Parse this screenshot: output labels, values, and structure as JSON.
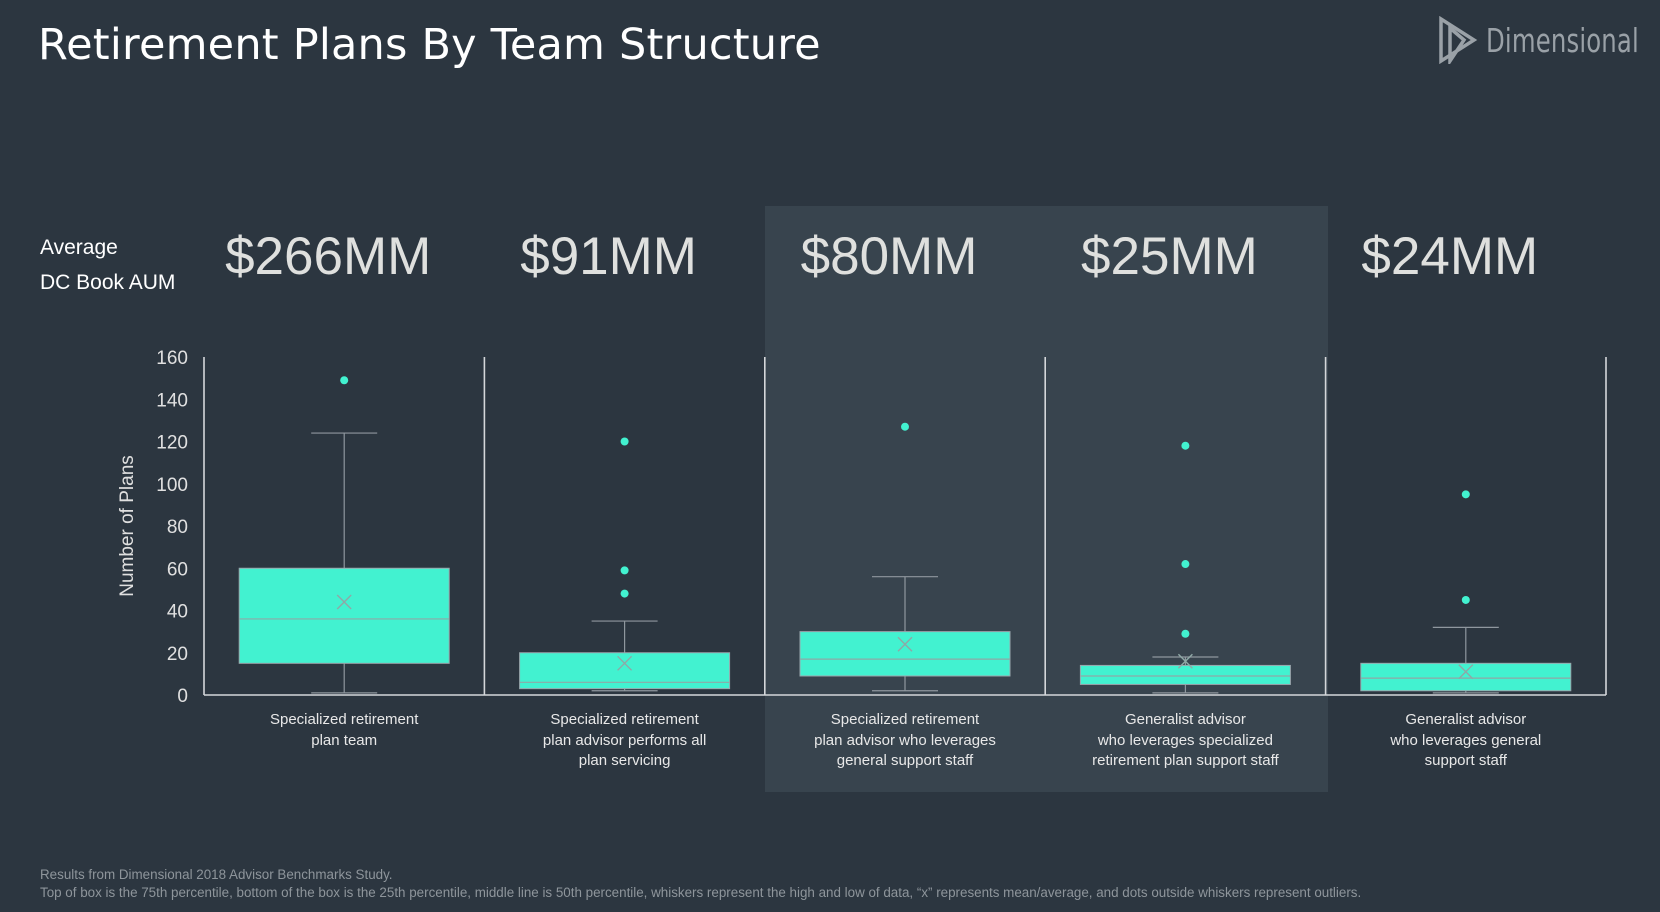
{
  "title": "Retirement Plans By Team Structure",
  "logo": {
    "text": "Dimensional",
    "icon": "dimensional-d-logo-icon"
  },
  "aum_label": {
    "line1": "Average",
    "line2": "DC Book AUM"
  },
  "colors": {
    "background": "#2c3640",
    "highlight_panel": "#38444e",
    "box_fill": "#42f2d0",
    "text": "#ffffff",
    "muted": "#8e959b"
  },
  "chart_data": {
    "type": "box",
    "ylabel": "Number of Plans",
    "ylim": [
      0,
      160
    ],
    "yticks": [
      0,
      20,
      40,
      60,
      80,
      100,
      120,
      140,
      160
    ],
    "highlighted_groups": [
      2,
      3
    ],
    "groups": [
      {
        "aum": "$266MM",
        "label_lines": [
          "Specialized retirement",
          "plan team"
        ],
        "min": 1,
        "q1": 15,
        "median": 36,
        "q3": 60,
        "max": 124,
        "mean": 44,
        "outliers": [
          149
        ]
      },
      {
        "aum": "$91MM",
        "label_lines": [
          "Specialized retirement",
          "plan advisor performs all",
          "plan servicing"
        ],
        "min": 2,
        "q1": 3,
        "median": 6,
        "q3": 20,
        "max": 35,
        "mean": 15,
        "outliers": [
          48,
          59,
          120
        ]
      },
      {
        "aum": "$80MM",
        "label_lines": [
          "Specialized retirement",
          "plan advisor who leverages",
          "general support staff"
        ],
        "min": 2,
        "q1": 9,
        "median": 17,
        "q3": 30,
        "max": 56,
        "mean": 24,
        "outliers": [
          127
        ]
      },
      {
        "aum": "$25MM",
        "label_lines": [
          "Generalist advisor",
          "who leverages specialized",
          "retirement plan support staff"
        ],
        "min": 1,
        "q1": 5,
        "median": 9,
        "q3": 14,
        "max": 18,
        "mean": 16,
        "outliers": [
          29,
          62,
          118
        ]
      },
      {
        "aum": "$24MM",
        "label_lines": [
          "Generalist advisor",
          "who leverages general",
          "support staff"
        ],
        "min": 1,
        "q1": 2,
        "median": 8,
        "q3": 15,
        "max": 32,
        "mean": 11,
        "outliers": [
          45,
          95
        ]
      }
    ]
  },
  "footnote": {
    "line1": "Results from Dimensional 2018 Advisor Benchmarks Study.",
    "line2": "Top of box is the 75th percentile, bottom of the box is the 25th percentile, middle line is 50th percentile, whiskers represent the high and low of data, “x” represents mean/average, and dots outside whiskers represent outliers."
  }
}
